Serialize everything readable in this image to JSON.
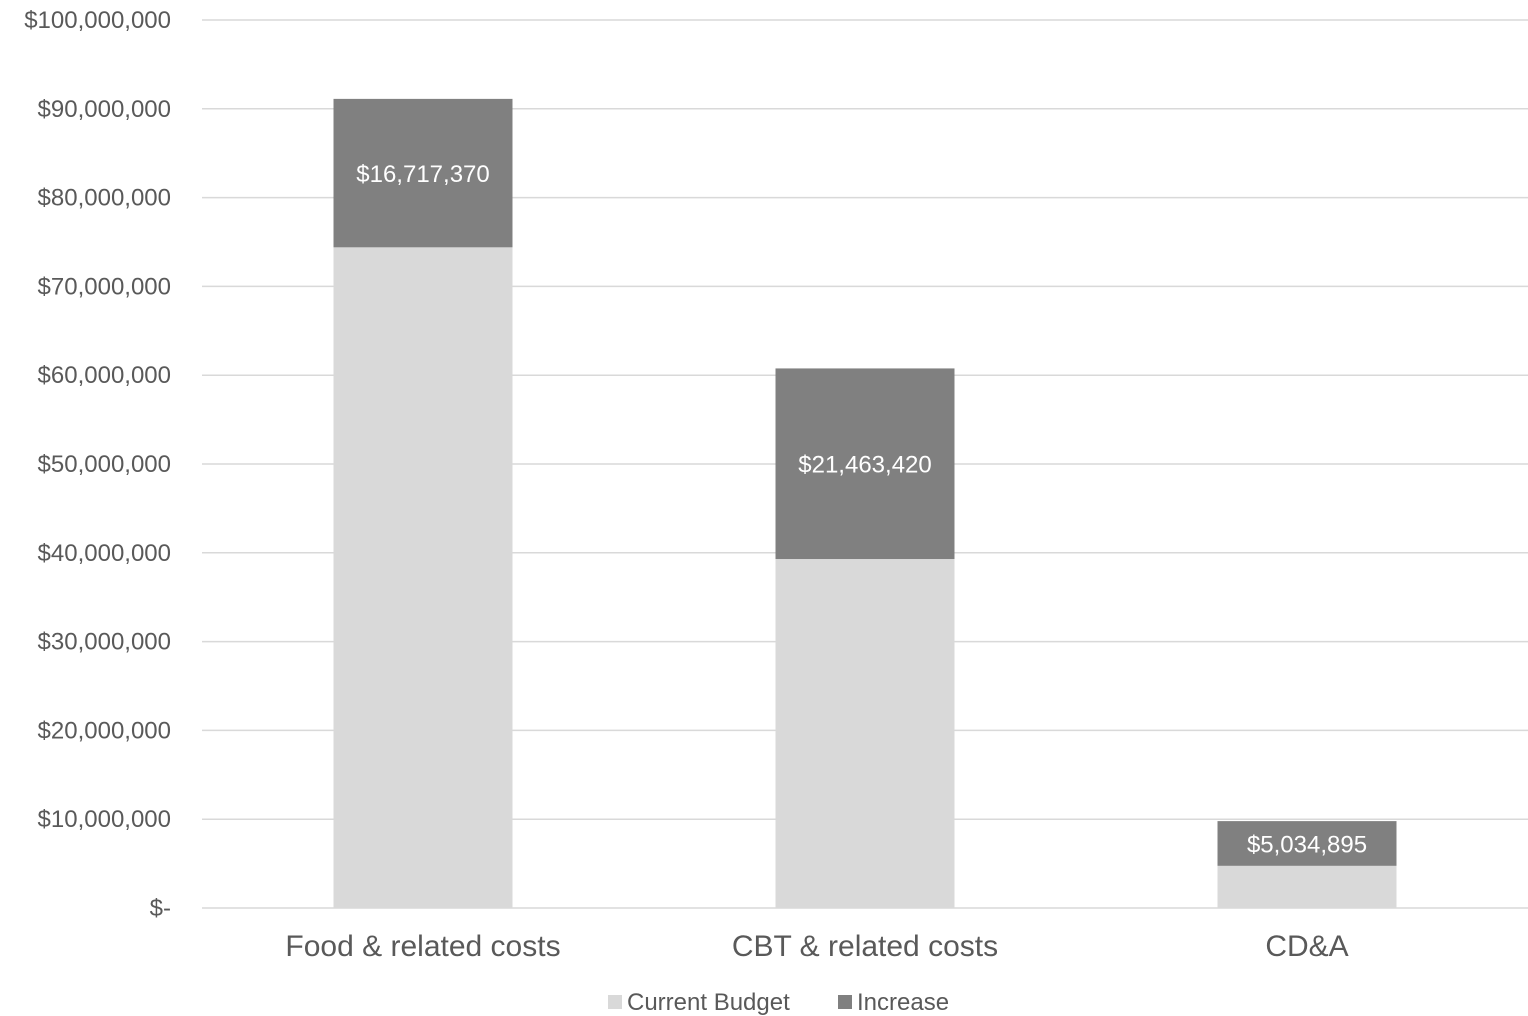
{
  "chart_data": {
    "type": "bar",
    "stacked": true,
    "categories": [
      "Food & related costs",
      "CBT & related costs",
      "CD&A"
    ],
    "series": [
      {
        "name": "Current Budget",
        "values": [
          74400000,
          39300000,
          4750000
        ],
        "color": "#d9d9d9"
      },
      {
        "name": "Increase",
        "values": [
          16717370,
          21463420,
          5034895
        ],
        "color": "#808080"
      }
    ],
    "data_labels": [
      "$16,717,370",
      "$21,463,420",
      "$5,034,895"
    ],
    "y_ticks": [
      {
        "value": 0,
        "label": "$-"
      },
      {
        "value": 10000000,
        "label": "$10,000,000"
      },
      {
        "value": 20000000,
        "label": "$20,000,000"
      },
      {
        "value": 30000000,
        "label": "$30,000,000"
      },
      {
        "value": 40000000,
        "label": "$40,000,000"
      },
      {
        "value": 50000000,
        "label": "$50,000,000"
      },
      {
        "value": 60000000,
        "label": "$60,000,000"
      },
      {
        "value": 70000000,
        "label": "$70,000,000"
      },
      {
        "value": 80000000,
        "label": "$80,000,000"
      },
      {
        "value": 90000000,
        "label": "$90,000,000"
      },
      {
        "value": 100000000,
        "label": "$100,000,000"
      }
    ],
    "ylim": [
      0,
      100000000
    ],
    "grid": true,
    "legend": "bottom-center",
    "title": "",
    "xlabel": "",
    "ylabel": ""
  },
  "colors": {
    "gridline": "#d9d9d9",
    "text": "#595959"
  }
}
